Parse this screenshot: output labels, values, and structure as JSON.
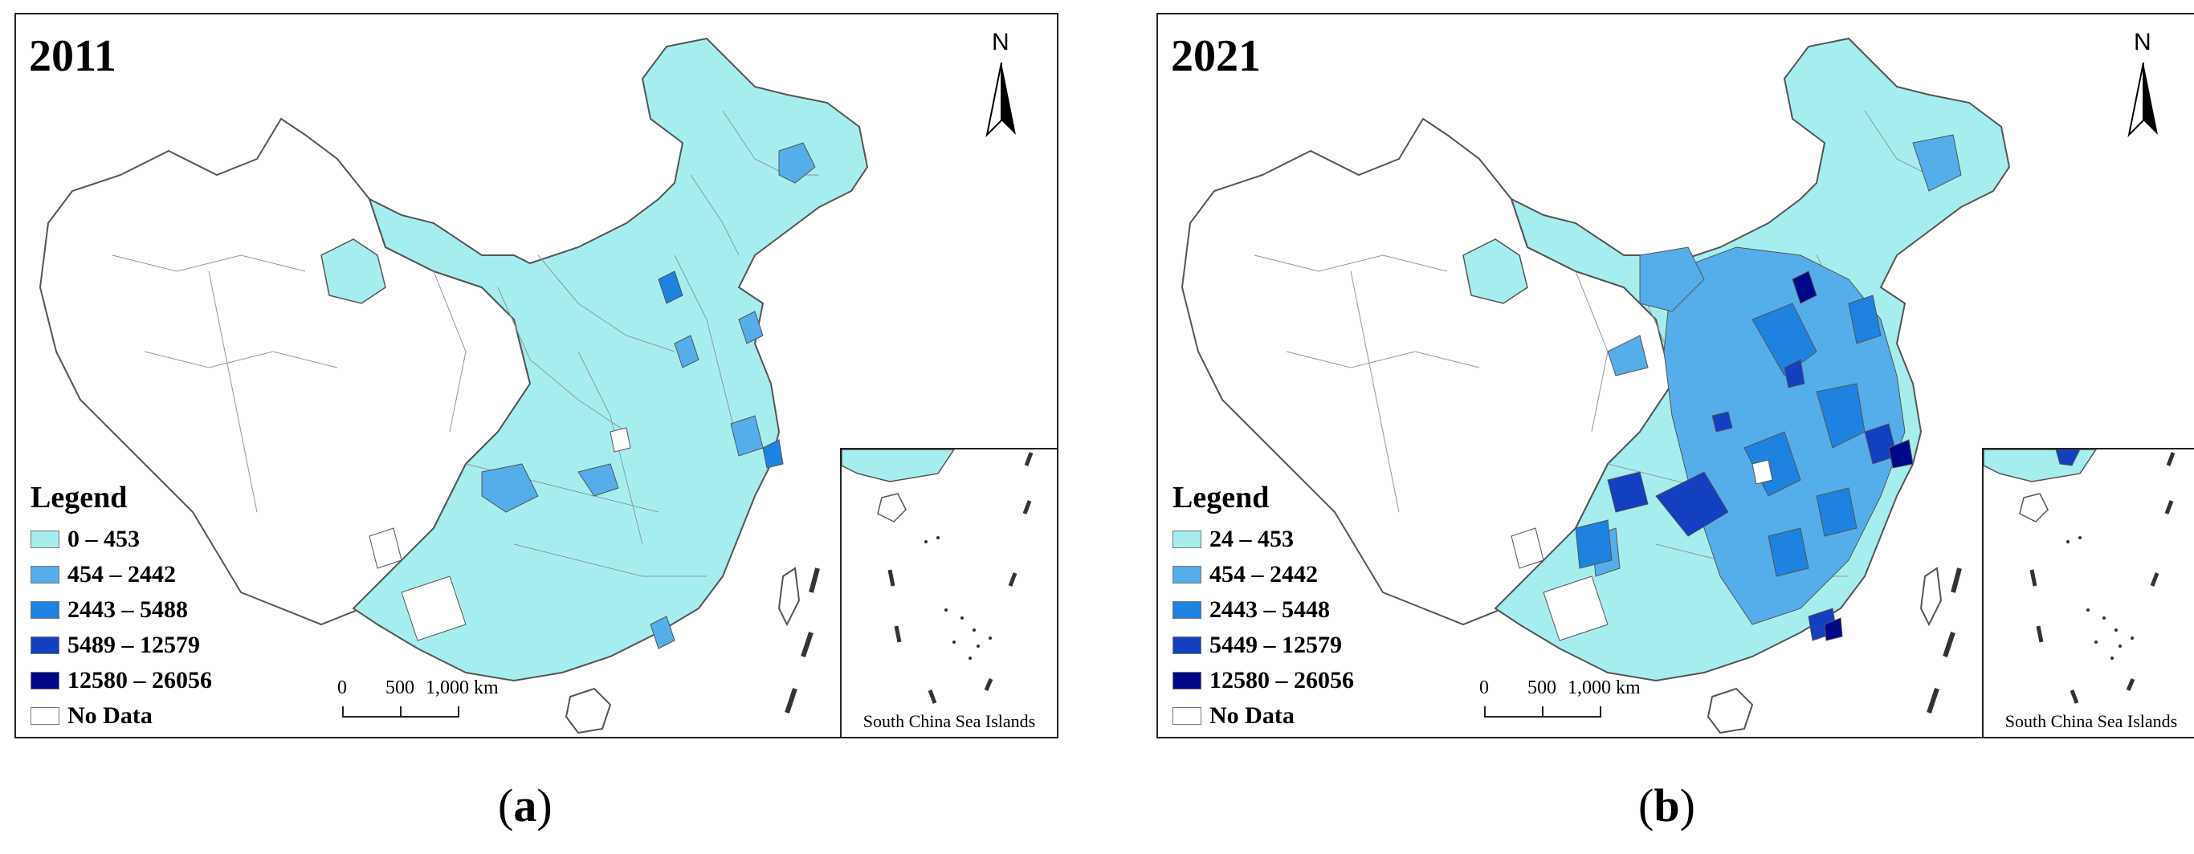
{
  "colors": {
    "class0": "#a6eeee",
    "class1": "#55aeea",
    "class2": "#1e82e0",
    "class3": "#1240c0",
    "class4": "#00088a",
    "nodata": "#ffffff",
    "boundary": "#888888"
  },
  "panels": [
    {
      "year": "2011",
      "caption": "a",
      "legend": {
        "title": "Legend",
        "items": [
          {
            "label": "0 – 453",
            "color": "#a6eeee"
          },
          {
            "label": "454 – 2442",
            "color": "#55aeea"
          },
          {
            "label": "2443 – 5488",
            "color": "#1e82e0"
          },
          {
            "label": "5489 – 12579",
            "color": "#1240c0"
          },
          {
            "label": "12580 – 26056",
            "color": "#00088a"
          },
          {
            "label": "No Data",
            "color": "#ffffff"
          }
        ]
      },
      "scale": {
        "t0": "0",
        "t1": "500",
        "t2": "1,000 km"
      },
      "north": "N",
      "inset_label": "South China Sea Islands"
    },
    {
      "year": "2021",
      "caption": "b",
      "legend": {
        "title": "Legend",
        "items": [
          {
            "label": "24 – 453",
            "color": "#a6eeee"
          },
          {
            "label": "454 – 2442",
            "color": "#55aeea"
          },
          {
            "label": "2443 – 5448",
            "color": "#1e82e0"
          },
          {
            "label": "5449 – 12579",
            "color": "#1240c0"
          },
          {
            "label": "12580 – 26056",
            "color": "#00088a"
          },
          {
            "label": "No Data",
            "color": "#ffffff"
          }
        ]
      },
      "scale": {
        "t0": "0",
        "t1": "500",
        "t2": "1,000 km"
      },
      "north": "N",
      "inset_label": "South China Sea Islands"
    }
  ]
}
